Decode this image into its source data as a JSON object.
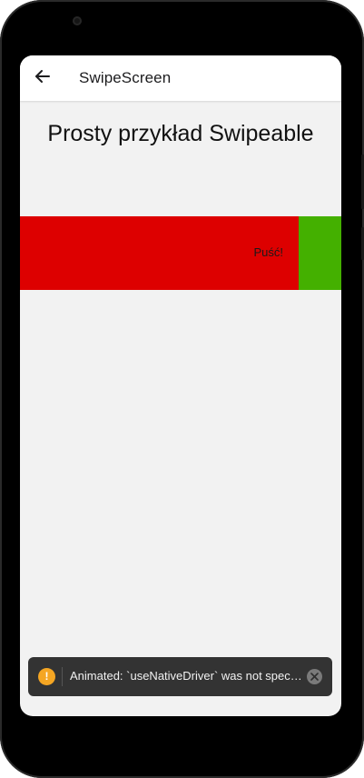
{
  "app_bar": {
    "title": "SwipeScreen",
    "back_icon": "arrow-left-icon"
  },
  "main": {
    "heading": "Prosty przykład Swipeable"
  },
  "swipe_row": {
    "label": "Puść!",
    "main_color": "#dd0000",
    "action_color": "#44b000"
  },
  "toast": {
    "message": "Animated: `useNativeDriver` was not specified.",
    "warning_icon": "warning-icon",
    "close_icon": "close-icon"
  }
}
